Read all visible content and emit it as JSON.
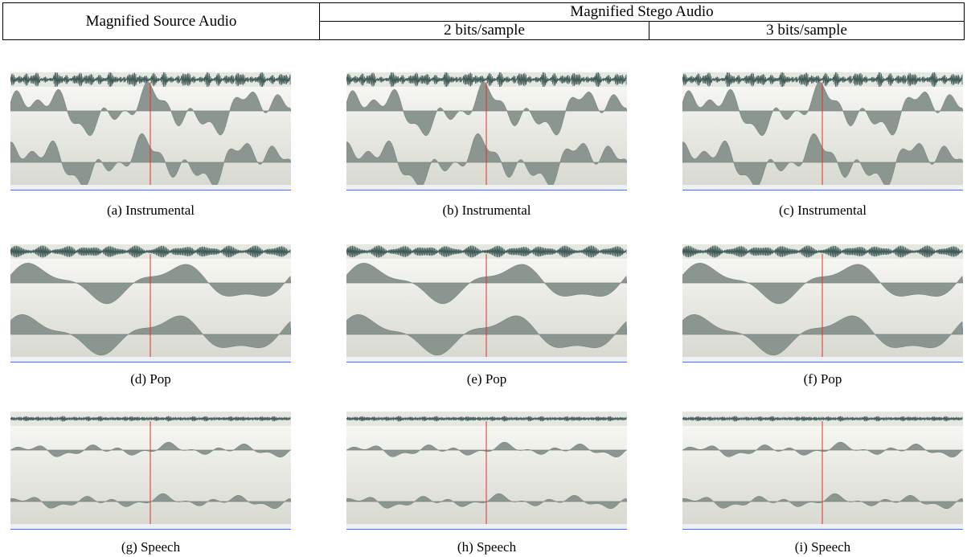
{
  "header": {
    "source": "Magnified Source Audio",
    "stego": "Magnified Stego Audio",
    "rates": [
      "2 bits/sample",
      "3 bits/sample"
    ]
  },
  "panels": [
    {
      "caption": "(a) Instrumental"
    },
    {
      "caption": "(b) Instrumental"
    },
    {
      "caption": "(c) Instrumental"
    },
    {
      "caption": "(d) Pop"
    },
    {
      "caption": "(e) Pop"
    },
    {
      "caption": "(f) Pop"
    },
    {
      "caption": "(g) Speech"
    },
    {
      "caption": "(h) Speech"
    },
    {
      "caption": "(i) Speech"
    }
  ]
}
